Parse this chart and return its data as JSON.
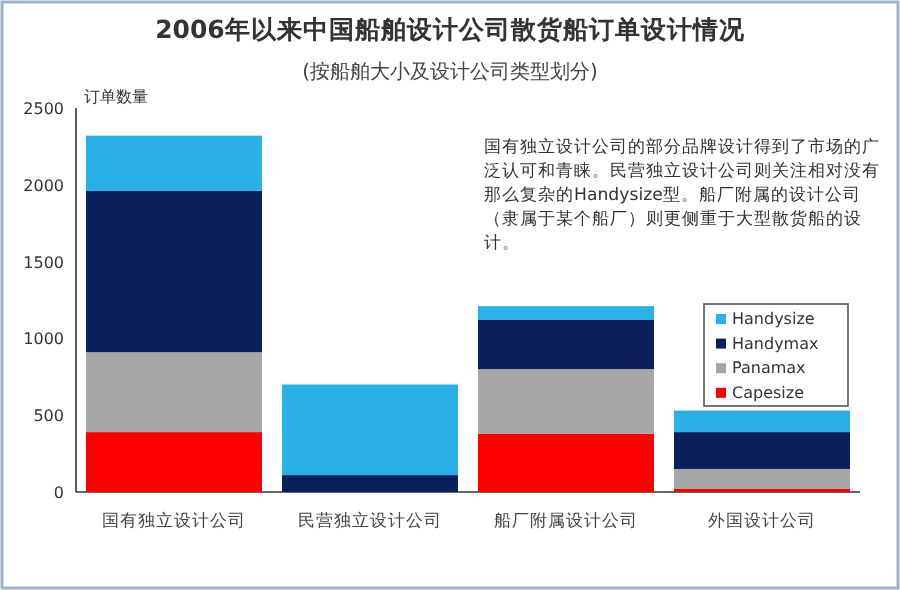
{
  "chart_data": {
    "type": "bar",
    "stacked": true,
    "title": "2006年以来中国船舶设计公司散货船订单设计情况",
    "subtitle": "(按船舶大小及设计公司类型划分)",
    "ylabel": "订单数量",
    "annotations": [
      "国有独立设计公司的部分品牌设计得到了市场的广泛认可和青睐。民营独立设计公司则关注相对没有那么复杂的Handysize型。船厂附属的设计公司（隶属于某个船厂）则更侧重于大型散货船的设计。"
    ],
    "categories": [
      "国有独立设计公司",
      "民营独立设计公司",
      "船厂附属设计公司",
      "外国设计公司"
    ],
    "series": [
      {
        "name": "Capesize",
        "color": "#ff0000",
        "values": [
          390,
          0,
          380,
          20
        ]
      },
      {
        "name": "Panamax",
        "color": "#a6a6a6",
        "values": [
          520,
          0,
          420,
          130
        ]
      },
      {
        "name": "Handymax",
        "color": "#0a1f5c",
        "values": [
          1050,
          110,
          320,
          240
        ]
      },
      {
        "name": "Handysize",
        "color": "#29b0e6",
        "values": [
          360,
          590,
          90,
          140
        ]
      }
    ],
    "ylim": [
      0,
      2500
    ],
    "yticks": [
      0,
      500,
      1000,
      1500,
      2000,
      2500
    ],
    "legend": "right",
    "grid": false
  }
}
